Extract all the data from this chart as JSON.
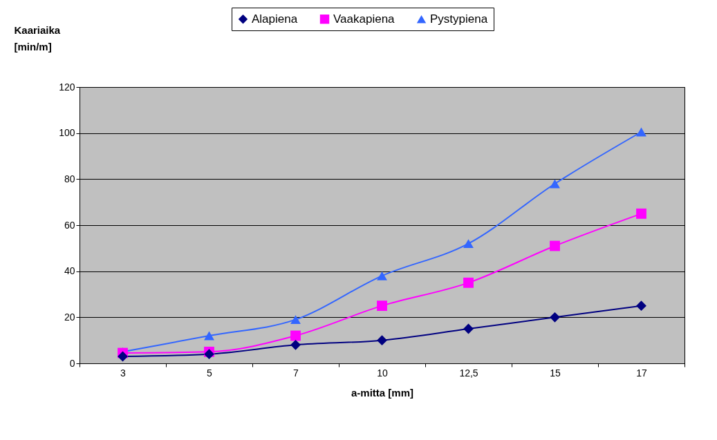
{
  "chart_data": {
    "type": "line",
    "xlabel": "a-mitta [mm]",
    "ylabel": "Kaariaika [min/m]",
    "categories": [
      "3",
      "5",
      "7",
      "10",
      "12,5",
      "15",
      "17"
    ],
    "series": [
      {
        "name": "Alapiena",
        "color": "#000080",
        "marker": "diamond",
        "values": [
          3,
          4,
          8,
          10,
          15,
          20,
          25
        ]
      },
      {
        "name": "Vaakapiena",
        "color": "#ff00ff",
        "marker": "square",
        "values": [
          4.5,
          5,
          12,
          25,
          35,
          51,
          65
        ]
      },
      {
        "name": "Pystypiena",
        "color": "#3366ff",
        "marker": "triangle",
        "values": [
          5,
          12,
          19,
          38,
          52,
          78,
          100.5
        ]
      }
    ],
    "ylim": [
      0,
      120
    ],
    "yticks": [
      0,
      20,
      40,
      60,
      80,
      100,
      120
    ],
    "grid": "y",
    "legend": "top"
  }
}
